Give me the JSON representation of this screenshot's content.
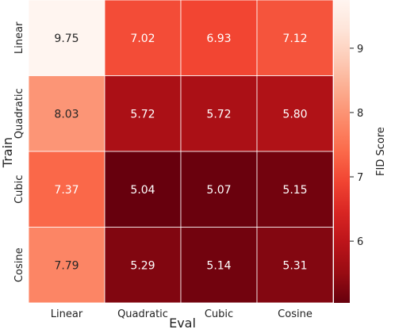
{
  "chart_data": {
    "type": "heatmap",
    "title": "",
    "xlabel": "Eval",
    "ylabel": "Train",
    "x_categories": [
      "Linear",
      "Quadratic",
      "Cubic",
      "Cosine"
    ],
    "y_categories": [
      "Linear",
      "Quadratic",
      "Cubic",
      "Cosine"
    ],
    "values": [
      [
        9.75,
        7.02,
        6.93,
        7.12
      ],
      [
        8.03,
        5.72,
        5.72,
        5.8
      ],
      [
        7.37,
        5.04,
        5.07,
        5.15
      ],
      [
        7.79,
        5.29,
        5.14,
        5.31
      ]
    ],
    "value_format": "0.00",
    "colorbar": {
      "label": "FID Score",
      "range": [
        5.04,
        9.75
      ],
      "ticks": [
        6,
        7,
        8,
        9
      ],
      "colormap": "Reds"
    },
    "grid": true
  }
}
